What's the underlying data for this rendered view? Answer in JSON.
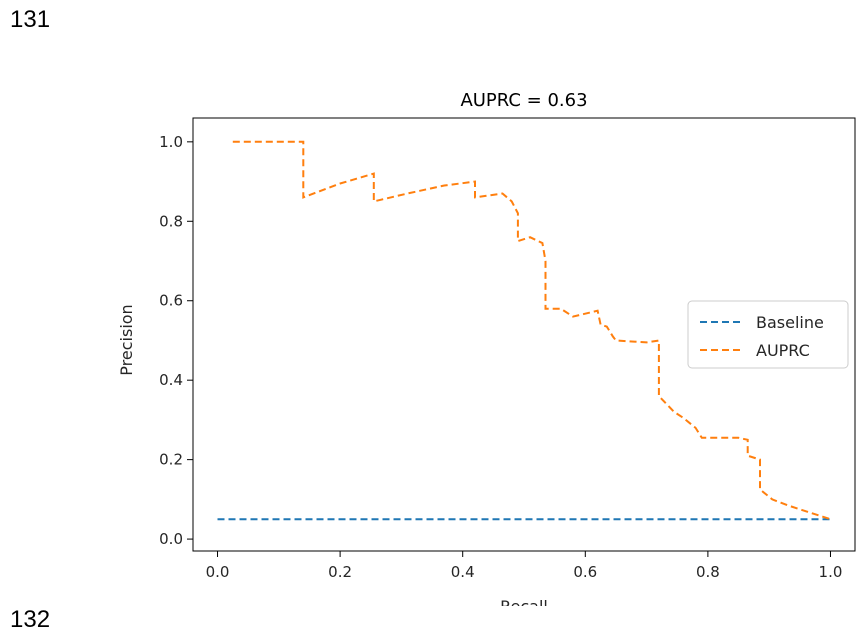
{
  "page": {
    "line_number_top": "131",
    "line_number_bottom": "132"
  },
  "chart_data": {
    "type": "line",
    "title": "AUPRC = 0.63",
    "xlabel": "Recall",
    "ylabel": "Precision",
    "xlim": [
      -0.04,
      1.04
    ],
    "ylim": [
      -0.03,
      1.06
    ],
    "x_ticks": [
      "0.0",
      "0.2",
      "0.4",
      "0.6",
      "0.8",
      "1.0"
    ],
    "y_ticks": [
      "0.0",
      "0.2",
      "0.4",
      "0.6",
      "0.8",
      "1.0"
    ],
    "grid": false,
    "legend_position": "center-right",
    "series": [
      {
        "name": "Baseline",
        "color": "#1f77b4",
        "style": "dashed",
        "x": [
          0.0,
          1.0
        ],
        "y": [
          0.05,
          0.05
        ]
      },
      {
        "name": "AUPRC",
        "color": "#ff7f0e",
        "style": "dashed",
        "x": [
          0.025,
          0.14,
          0.14,
          0.2,
          0.255,
          0.255,
          0.31,
          0.37,
          0.42,
          0.42,
          0.465,
          0.48,
          0.49,
          0.49,
          0.51,
          0.53,
          0.535,
          0.535,
          0.56,
          0.58,
          0.62,
          0.625,
          0.635,
          0.645,
          0.65,
          0.7,
          0.72,
          0.72,
          0.745,
          0.76,
          0.78,
          0.79,
          0.85,
          0.865,
          0.865,
          0.885,
          0.885,
          0.905,
          0.93,
          0.96,
          1.0
        ],
        "y": [
          1.0,
          1.0,
          0.86,
          0.895,
          0.92,
          0.85,
          0.87,
          0.89,
          0.9,
          0.86,
          0.87,
          0.85,
          0.82,
          0.75,
          0.76,
          0.745,
          0.7,
          0.58,
          0.58,
          0.56,
          0.575,
          0.54,
          0.535,
          0.51,
          0.5,
          0.495,
          0.5,
          0.36,
          0.32,
          0.305,
          0.28,
          0.255,
          0.255,
          0.25,
          0.21,
          0.2,
          0.125,
          0.1,
          0.085,
          0.07,
          0.05
        ]
      }
    ]
  }
}
